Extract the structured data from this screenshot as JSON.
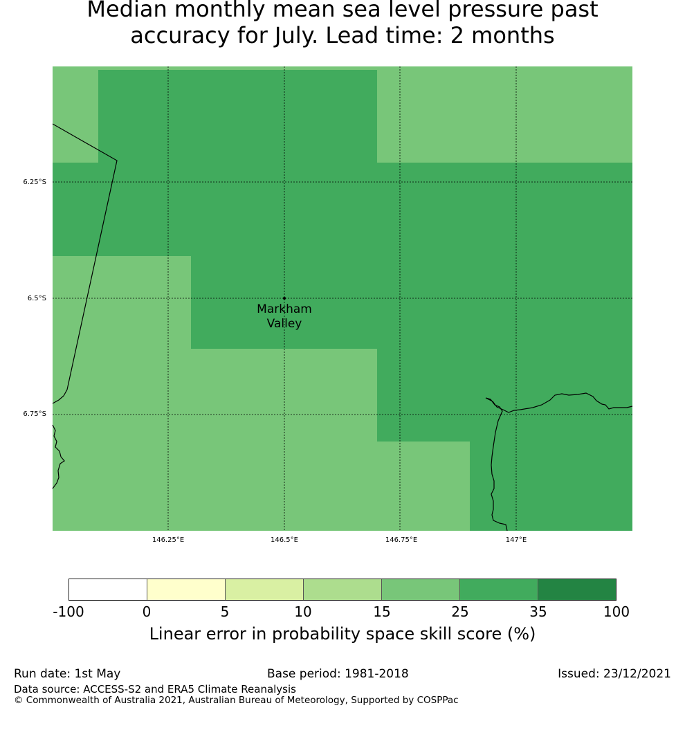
{
  "title": {
    "line1": "Median monthly mean sea level pressure past",
    "line2": "accuracy for July. Lead time: 2 months"
  },
  "map": {
    "location_label": [
      "Markham",
      "Valley"
    ],
    "lon_ticks": [
      "146.25°E",
      "146.5°E",
      "146.75°E",
      "147°E"
    ],
    "lat_ticks": [
      "6.25°S",
      "6.5°S",
      "6.75°S"
    ],
    "colors": {
      "band_15_25": "#78c679",
      "band_25_35": "#41ab5d",
      "coast": "#000000"
    }
  },
  "colorbar": {
    "ticks": [
      "-100",
      "0",
      "5",
      "10",
      "15",
      "25",
      "35",
      "100"
    ],
    "colors": [
      "#ffffff",
      "#ffffcc",
      "#d9f0a3",
      "#addd8e",
      "#78c679",
      "#41ab5d",
      "#238443"
    ],
    "label": "Linear error in probability space skill score (%)"
  },
  "footer": {
    "run_date": "Run date: 1st May",
    "base_period": "Base period: 1981-2018",
    "issued": "Issued: 23/12/2021",
    "data_source": "Data source: ACCESS-S2 and ERA5 Climate Reanalysis",
    "copyright": "© Commonwealth of Australia 2021, Australian Bureau of Meteorology, Supported by COSPPac"
  }
}
